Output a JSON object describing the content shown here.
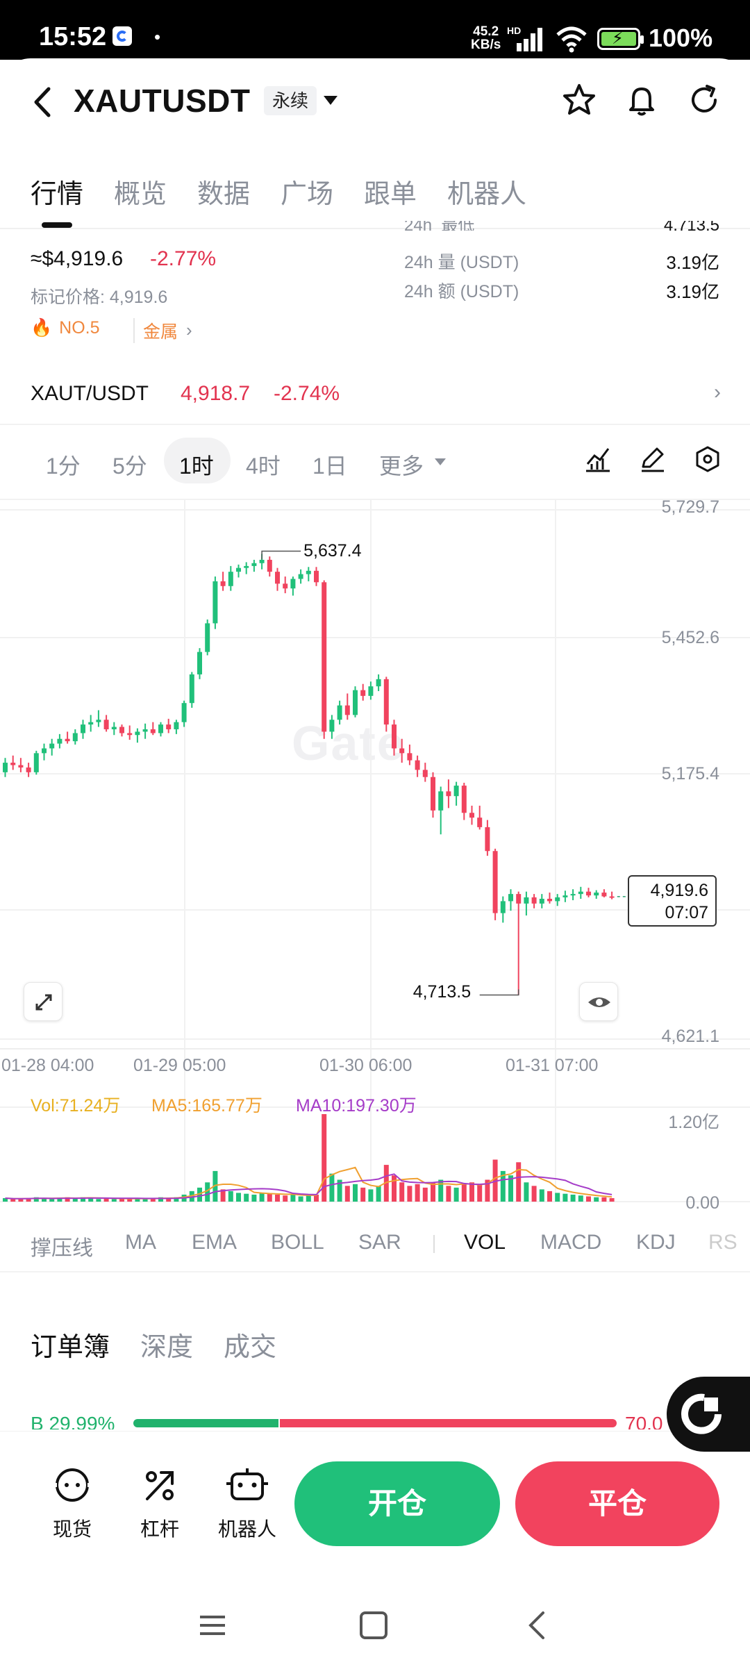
{
  "status_bar": {
    "time": "15:52",
    "dot": "•",
    "net_speed_value": "45.2",
    "net_speed_unit": "KB/s",
    "signal_tag": "HD",
    "battery": "100%"
  },
  "header": {
    "symbol": "XAUTUSDT",
    "contract_type": "永续",
    "icons": [
      "back-icon",
      "star-icon",
      "bell-icon",
      "refresh-icon"
    ]
  },
  "tabs": [
    {
      "label": "行情",
      "active": true
    },
    {
      "label": "概览",
      "active": false
    },
    {
      "label": "数据",
      "active": false
    },
    {
      "label": "广场",
      "active": false
    },
    {
      "label": "跟单",
      "active": false
    },
    {
      "label": "机器人",
      "active": false
    }
  ],
  "market": {
    "top_cut_left": "24h",
    "top_cut_label": "最低",
    "top_cut_value": "4,713.5",
    "price_usd": "≈$4,919.6",
    "change_pct": "-2.77%",
    "mark_price": "标记价格: 4,919.6",
    "rank": "NO.5",
    "category": "金属",
    "vol_label": "24h  量 (USDT)",
    "vol_value": "3.19亿",
    "amt_label": "24h  额 (USDT)",
    "amt_value": "3.19亿"
  },
  "spot": {
    "pair": "XAUT/USDT",
    "price": "4,918.7",
    "change": "-2.74%"
  },
  "intervals": [
    {
      "label": "1分",
      "active": false
    },
    {
      "label": "5分",
      "active": false
    },
    {
      "label": "1时",
      "active": true
    },
    {
      "label": "4时",
      "active": false
    },
    {
      "label": "1日",
      "active": false
    },
    {
      "label": "更多",
      "active": false
    }
  ],
  "chart_data": {
    "type": "candlestick",
    "y_axis_ticks": [
      "5,729.7",
      "5,452.6",
      "5,175.4",
      "4,621.1"
    ],
    "x_axis_ticks": [
      "01-28 04:00",
      "01-29 05:00",
      "01-30 06:00",
      "01-31 07:00"
    ],
    "high_label": "5,637.4",
    "low_label": "4,713.5",
    "current_price": "4,919.6",
    "countdown": "07:07",
    "ylim": [
      4621.1,
      5729.7
    ],
    "candles": [
      [
        5180,
        5210,
        5170,
        5200
      ],
      [
        5200,
        5215,
        5185,
        5195
      ],
      [
        5195,
        5210,
        5180,
        5190
      ],
      [
        5190,
        5200,
        5170,
        5180
      ],
      [
        5180,
        5225,
        5175,
        5220
      ],
      [
        5220,
        5240,
        5205,
        5230
      ],
      [
        5230,
        5250,
        5215,
        5240
      ],
      [
        5240,
        5260,
        5230,
        5250
      ],
      [
        5250,
        5265,
        5240,
        5245
      ],
      [
        5245,
        5270,
        5238,
        5262
      ],
      [
        5262,
        5290,
        5250,
        5280
      ],
      [
        5280,
        5300,
        5265,
        5285
      ],
      [
        5285,
        5310,
        5275,
        5290
      ],
      [
        5290,
        5300,
        5265,
        5270
      ],
      [
        5270,
        5285,
        5258,
        5275
      ],
      [
        5275,
        5280,
        5255,
        5262
      ],
      [
        5262,
        5278,
        5248,
        5258
      ],
      [
        5258,
        5272,
        5242,
        5265
      ],
      [
        5265,
        5282,
        5250,
        5270
      ],
      [
        5270,
        5285,
        5258,
        5262
      ],
      [
        5262,
        5285,
        5255,
        5280
      ],
      [
        5280,
        5292,
        5262,
        5270
      ],
      [
        5270,
        5290,
        5260,
        5285
      ],
      [
        5285,
        5330,
        5275,
        5325
      ],
      [
        5325,
        5390,
        5315,
        5385
      ],
      [
        5385,
        5440,
        5375,
        5432
      ],
      [
        5432,
        5500,
        5425,
        5492
      ],
      [
        5492,
        5590,
        5480,
        5580
      ],
      [
        5580,
        5600,
        5560,
        5570
      ],
      [
        5570,
        5612,
        5560,
        5600
      ],
      [
        5600,
        5615,
        5588,
        5608
      ],
      [
        5608,
        5620,
        5595,
        5612
      ],
      [
        5612,
        5625,
        5600,
        5618
      ],
      [
        5618,
        5637.4,
        5605,
        5625
      ],
      [
        5625,
        5632,
        5590,
        5600
      ],
      [
        5600,
        5608,
        5560,
        5575
      ],
      [
        5575,
        5590,
        5555,
        5565
      ],
      [
        5565,
        5590,
        5550,
        5585
      ],
      [
        5585,
        5605,
        5575,
        5595
      ],
      [
        5595,
        5610,
        5580,
        5602
      ],
      [
        5602,
        5610,
        5570,
        5578
      ],
      [
        5578,
        5582,
        5250,
        5265
      ],
      [
        5265,
        5300,
        5250,
        5290
      ],
      [
        5290,
        5330,
        5280,
        5320
      ],
      [
        5320,
        5345,
        5290,
        5300
      ],
      [
        5300,
        5360,
        5295,
        5352
      ],
      [
        5352,
        5365,
        5330,
        5340
      ],
      [
        5340,
        5370,
        5332,
        5360
      ],
      [
        5360,
        5385,
        5350,
        5375
      ],
      [
        5375,
        5380,
        5265,
        5280
      ],
      [
        5280,
        5290,
        5215,
        5230
      ],
      [
        5230,
        5250,
        5200,
        5220
      ],
      [
        5220,
        5238,
        5195,
        5205
      ],
      [
        5205,
        5215,
        5170,
        5185
      ],
      [
        5185,
        5200,
        5160,
        5170
      ],
      [
        5170,
        5180,
        5085,
        5100
      ],
      [
        5100,
        5150,
        5050,
        5140
      ],
      [
        5140,
        5165,
        5105,
        5130
      ],
      [
        5130,
        5160,
        5110,
        5152
      ],
      [
        5152,
        5158,
        5080,
        5095
      ],
      [
        5095,
        5110,
        5070,
        5085
      ],
      [
        5085,
        5110,
        5060,
        5065
      ],
      [
        5065,
        5080,
        5005,
        5015
      ],
      [
        5015,
        5020,
        4870,
        4885
      ],
      [
        4885,
        4920,
        4865,
        4910
      ],
      [
        4910,
        4935,
        4890,
        4925
      ],
      [
        4925,
        4930,
        4713.5,
        4905
      ],
      [
        4905,
        4930,
        4880,
        4918
      ],
      [
        4918,
        4925,
        4895,
        4905
      ],
      [
        4905,
        4925,
        4895,
        4915
      ],
      [
        4915,
        4928,
        4905,
        4910
      ],
      [
        4910,
        4925,
        4900,
        4918
      ],
      [
        4918,
        4932,
        4908,
        4922
      ],
      [
        4922,
        4935,
        4912,
        4925
      ],
      [
        4925,
        4940,
        4915,
        4930
      ],
      [
        4930,
        4938,
        4918,
        4922
      ],
      [
        4922,
        4933,
        4915,
        4928
      ],
      [
        4928,
        4935,
        4918,
        4920
      ],
      [
        4920,
        4930,
        4914,
        4919.6
      ]
    ]
  },
  "volume": {
    "vol": "Vol:71.24万",
    "ma5": "MA5:165.77万",
    "ma10": "MA10:197.30万",
    "axis_top": "1.20亿",
    "axis_bottom": "0.00",
    "bars": [
      0.04,
      0.03,
      0.03,
      0.04,
      0.05,
      0.04,
      0.03,
      0.04,
      0.05,
      0.04,
      0.05,
      0.04,
      0.03,
      0.04,
      0.03,
      0.04,
      0.03,
      0.04,
      0.03,
      0.04,
      0.05,
      0.04,
      0.05,
      0.08,
      0.12,
      0.16,
      0.22,
      0.35,
      0.14,
      0.12,
      0.1,
      0.09,
      0.08,
      0.1,
      0.09,
      0.08,
      0.07,
      0.08,
      0.06,
      0.07,
      0.08,
      1.0,
      0.32,
      0.25,
      0.18,
      0.2,
      0.16,
      0.14,
      0.18,
      0.42,
      0.3,
      0.22,
      0.18,
      0.2,
      0.16,
      0.22,
      0.25,
      0.18,
      0.16,
      0.2,
      0.22,
      0.2,
      0.25,
      0.48,
      0.35,
      0.3,
      0.45,
      0.22,
      0.18,
      0.14,
      0.12,
      0.1,
      0.09,
      0.08,
      0.07,
      0.06,
      0.05,
      0.05,
      0.04
    ],
    "colors": {
      "up": "#20c07a",
      "down": "#f0435e",
      "ma5": "#f0a030",
      "ma10": "#a53cc8",
      "vol": "#e8b020"
    }
  },
  "indicators": [
    {
      "label": "撑压线",
      "active": false
    },
    {
      "label": "MA",
      "active": false
    },
    {
      "label": "EMA",
      "active": false
    },
    {
      "label": "BOLL",
      "active": false
    },
    {
      "label": "SAR",
      "active": false
    },
    {
      "label": "VOL",
      "active": true
    },
    {
      "label": "MACD",
      "active": false
    },
    {
      "label": "KDJ",
      "active": false
    },
    {
      "label": "RS",
      "active": false
    }
  ],
  "orderbook": {
    "tabs": [
      {
        "label": "订单簿",
        "active": true
      },
      {
        "label": "深度",
        "active": false
      },
      {
        "label": "成交",
        "active": false
      }
    ],
    "buy_ratio_label": "B 29.99%",
    "sell_ratio_label": "70.0",
    "buy_ratio": 0.2999
  },
  "bottom": {
    "spot_label": "现货",
    "leverage_label": "杠杆",
    "bot_label": "机器人",
    "open_label": "开仓",
    "close_label": "平仓"
  }
}
